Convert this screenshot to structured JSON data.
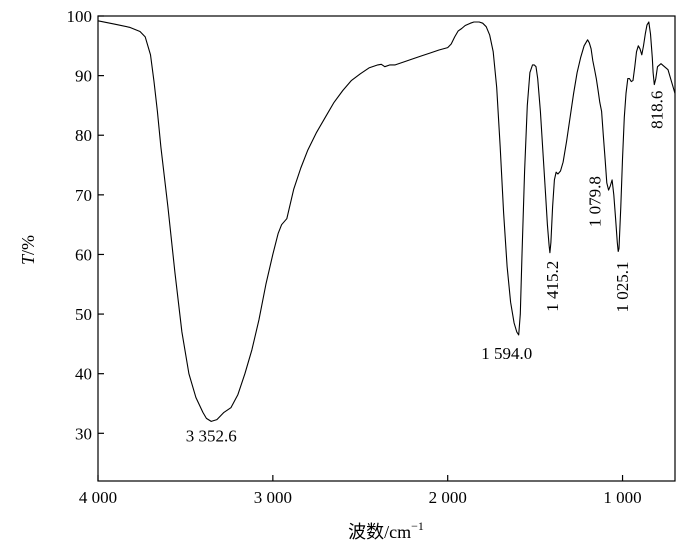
{
  "chart_data": {
    "type": "line",
    "title": "",
    "xlabel": "波数/cm",
    "xlabel_superscript": "−1",
    "ylabel_italic": "T",
    "ylabel_rest": "/%",
    "x_reversed": true,
    "xlim": [
      4000,
      700
    ],
    "ylim": [
      22,
      100
    ],
    "grid": false,
    "x_ticks": [
      4000,
      3000,
      2000,
      1000
    ],
    "x_tick_labels": [
      "4 000",
      "3 000",
      "2 000",
      "1 000"
    ],
    "y_ticks": [
      30,
      40,
      50,
      60,
      70,
      80,
      90,
      100
    ],
    "y_tick_labels": [
      "30",
      "40",
      "50",
      "60",
      "70",
      "80",
      "90",
      "100"
    ],
    "series": [
      {
        "color": "#000000",
        "x": [
          4000,
          3900,
          3820,
          3760,
          3730,
          3700,
          3680,
          3660,
          3640,
          3600,
          3560,
          3520,
          3480,
          3440,
          3400,
          3380,
          3352.6,
          3320,
          3280,
          3240,
          3200,
          3160,
          3120,
          3080,
          3040,
          3000,
          2970,
          2950,
          2920,
          2880,
          2840,
          2800,
          2750,
          2700,
          2650,
          2600,
          2550,
          2500,
          2450,
          2400,
          2380,
          2360,
          2330,
          2300,
          2250,
          2200,
          2150,
          2100,
          2050,
          2000,
          1980,
          1960,
          1940,
          1920,
          1900,
          1870,
          1850,
          1820,
          1800,
          1780,
          1760,
          1740,
          1720,
          1700,
          1680,
          1660,
          1640,
          1620,
          1605,
          1594.0,
          1585,
          1575,
          1560,
          1545,
          1530,
          1515,
          1505,
          1495,
          1485,
          1470,
          1455,
          1440,
          1430,
          1420,
          1415.2,
          1410,
          1400,
          1390,
          1380,
          1370,
          1355,
          1340,
          1320,
          1300,
          1280,
          1260,
          1240,
          1220,
          1200,
          1190,
          1180,
          1170,
          1160,
          1150,
          1140,
          1130,
          1120,
          1110,
          1100,
          1090,
          1079.8,
          1070,
          1060,
          1050,
          1040,
          1030,
          1025.1,
          1020,
          1010,
          1000,
          990,
          980,
          970,
          960,
          950,
          940,
          930,
          920,
          910,
          900,
          890,
          880,
          870,
          860,
          850,
          840,
          830,
          825,
          818.6,
          810,
          800,
          780,
          760,
          740,
          720,
          700
        ],
        "y": [
          99.2,
          98.6,
          98.1,
          97.4,
          96.5,
          93.5,
          89.0,
          84.0,
          78.0,
          68.0,
          57.0,
          47.0,
          40.0,
          36.0,
          33.5,
          32.5,
          32.0,
          32.3,
          33.5,
          34.3,
          36.5,
          40.0,
          44.0,
          49.0,
          55.0,
          60.0,
          63.5,
          65.0,
          66.0,
          71.0,
          74.5,
          77.5,
          80.5,
          83.0,
          85.5,
          87.5,
          89.2,
          90.3,
          91.3,
          91.8,
          91.9,
          91.5,
          91.8,
          91.8,
          92.3,
          92.8,
          93.3,
          93.8,
          94.3,
          94.7,
          95.3,
          96.5,
          97.5,
          97.9,
          98.4,
          98.8,
          99.0,
          99.0,
          98.8,
          98.2,
          96.8,
          94.0,
          88.0,
          78.0,
          67.0,
          58.0,
          52.0,
          48.5,
          47.0,
          46.5,
          50.0,
          60.0,
          74.0,
          85.0,
          90.5,
          91.8,
          91.8,
          91.5,
          89.5,
          84.0,
          77.0,
          70.0,
          65.0,
          61.5,
          60.3,
          62.0,
          68.0,
          72.5,
          73.8,
          73.5,
          74.0,
          75.5,
          79.0,
          83.0,
          87.0,
          90.5,
          93.0,
          95.0,
          96.0,
          95.5,
          94.5,
          92.5,
          91.0,
          89.5,
          87.5,
          85.5,
          84.0,
          80.0,
          76.0,
          72.0,
          70.8,
          71.5,
          72.5,
          70.0,
          66.0,
          62.0,
          60.5,
          61.0,
          68.0,
          76.0,
          83.0,
          87.0,
          89.5,
          89.5,
          89.0,
          89.2,
          91.5,
          94.0,
          95.0,
          94.5,
          93.5,
          95.0,
          97.0,
          98.5,
          99.0,
          97.0,
          93.0,
          90.5,
          88.5,
          89.5,
          91.5,
          92.0,
          91.5,
          91.0,
          89.0,
          87.0
        ]
      }
    ],
    "annotations": [
      {
        "text": "3 352.6",
        "x": 3352.6,
        "y": 32.0
      },
      {
        "text": "1 594.0",
        "x": 1594.0,
        "y": 46.5
      },
      {
        "text": "1 415.2",
        "x": 1415.2,
        "y": 60.3
      },
      {
        "text": "1 079.8",
        "x": 1079.8,
        "y": 70.8
      },
      {
        "text": "1 025.1",
        "x": 1025.1,
        "y": 60.5
      },
      {
        "text": "818.6",
        "x": 818.6,
        "y": 88.5
      }
    ]
  }
}
